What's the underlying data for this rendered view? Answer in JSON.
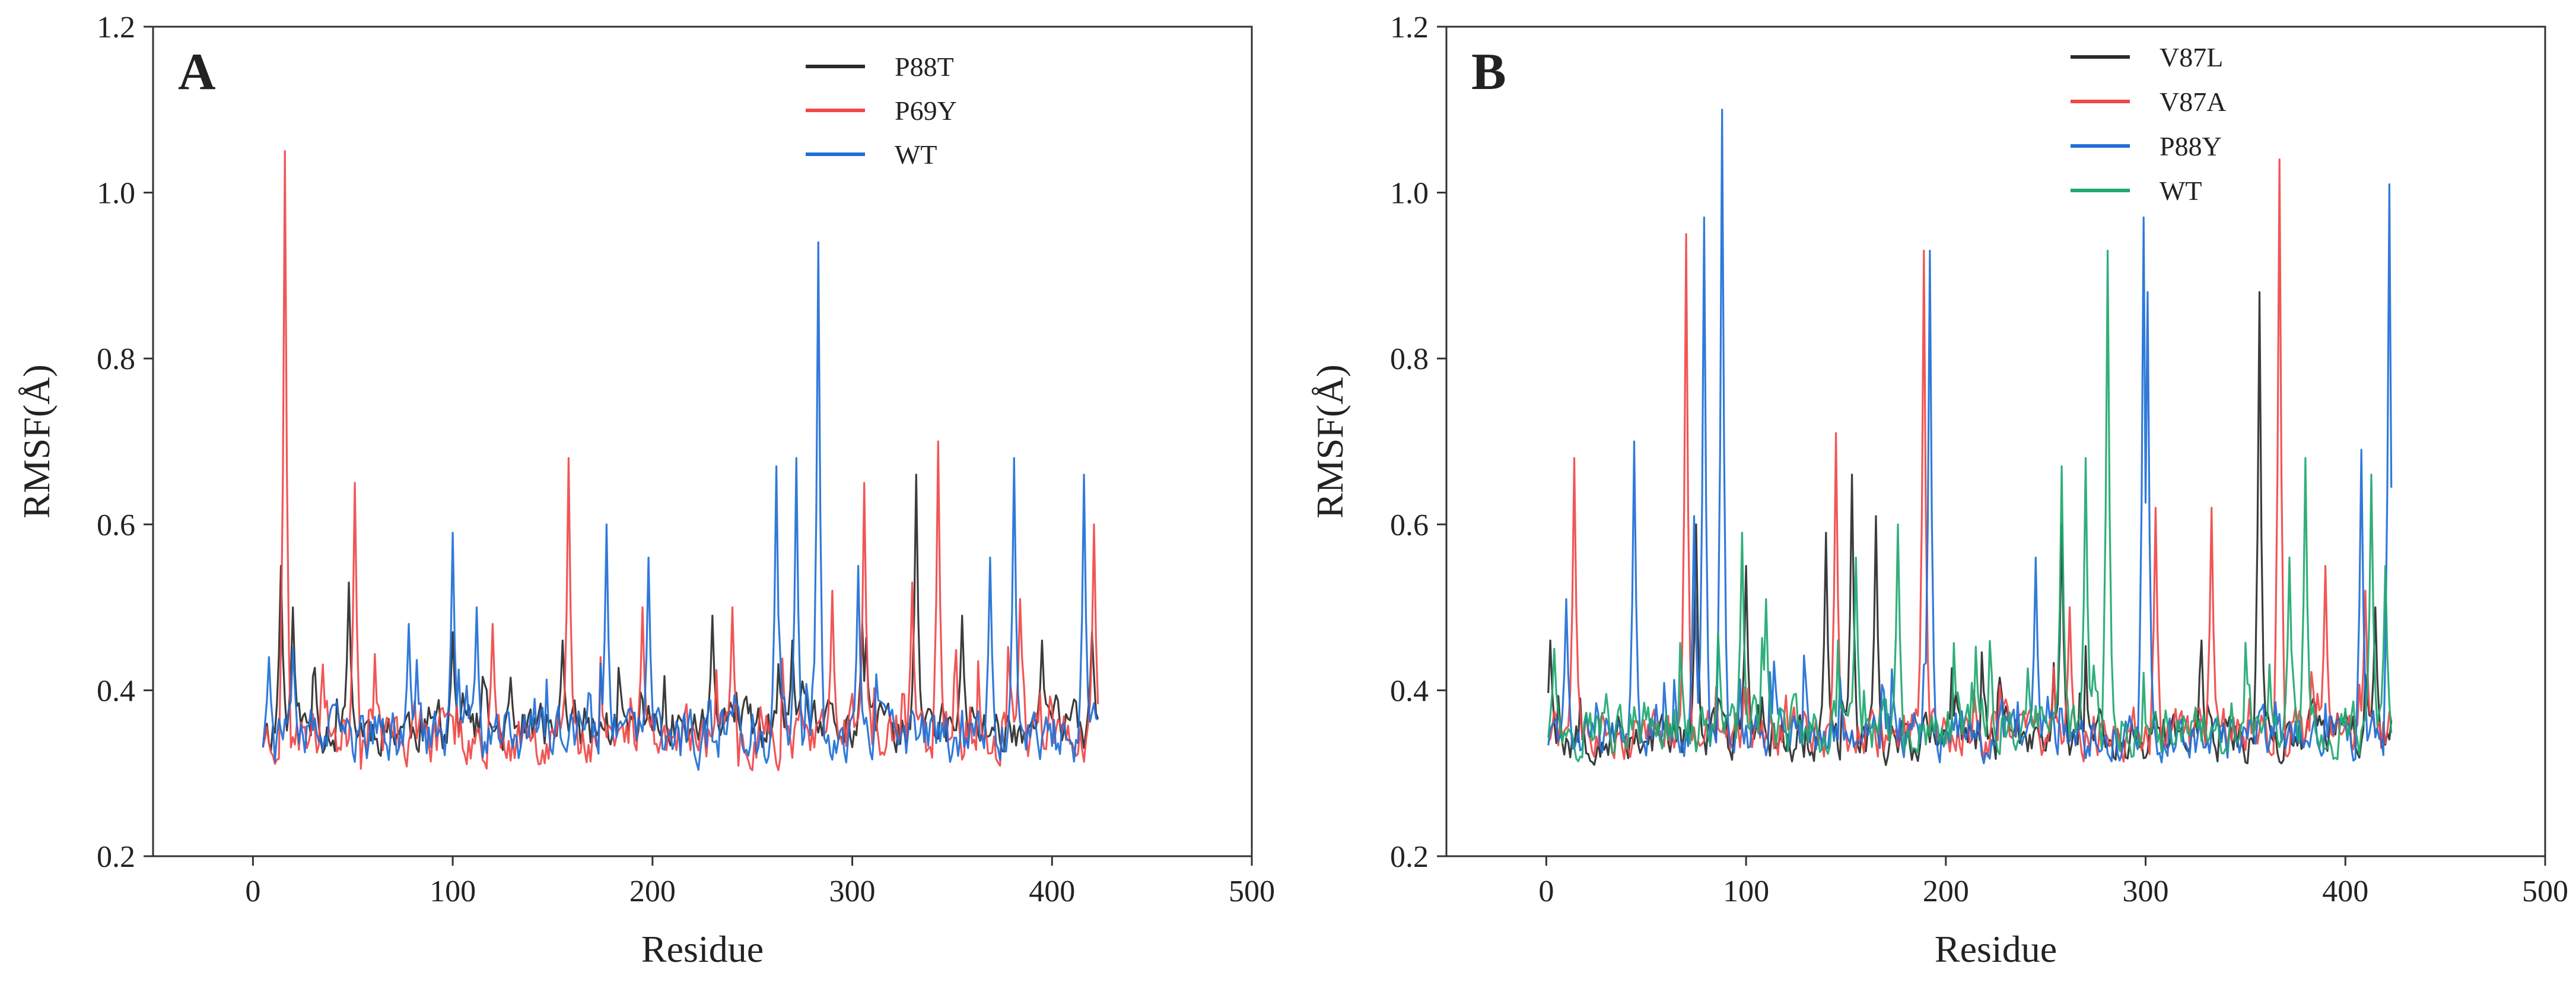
{
  "chart_data": [
    {
      "type": "line",
      "panel_label": "A",
      "xlabel": "Residue",
      "ylabel": "RMSF(Å)",
      "xlim": [
        -50,
        500
      ],
      "ylim": [
        0.2,
        1.2
      ],
      "xticks": [
        "0",
        "100",
        "200",
        "300",
        "400",
        "500"
      ],
      "yticks": [
        "0.2",
        "0.4",
        "0.6",
        "0.8",
        "1.0",
        "1.2"
      ],
      "grid": false,
      "legend_position": "top-center",
      "residue_range": [
        5,
        423
      ],
      "series": [
        {
          "name": "P88T",
          "color": "#2b2b2b",
          "baseline": 0.355,
          "noise": 0.045,
          "seed": 11,
          "peaks": [
            [
              14,
              0.55
            ],
            [
              20,
              0.5
            ],
            [
              48,
              0.53
            ],
            [
              100,
              0.47
            ],
            [
              155,
              0.46
            ],
            [
              230,
              0.49
            ],
            [
              270,
              0.46
            ],
            [
              305,
              0.48
            ],
            [
              332,
              0.66
            ],
            [
              355,
              0.49
            ],
            [
              395,
              0.46
            ],
            [
              420,
              0.47
            ]
          ]
        },
        {
          "name": "P69Y",
          "color": "#f04848",
          "baseline": 0.345,
          "noise": 0.05,
          "seed": 23,
          "peaks": [
            [
              16,
              1.05
            ],
            [
              51,
              0.65
            ],
            [
              120,
              0.48
            ],
            [
              158,
              0.68
            ],
            [
              195,
              0.5
            ],
            [
              240,
              0.5
            ],
            [
              290,
              0.52
            ],
            [
              306,
              0.65
            ],
            [
              330,
              0.53
            ],
            [
              343,
              0.7
            ],
            [
              384,
              0.51
            ],
            [
              421,
              0.6
            ]
          ]
        },
        {
          "name": "WT",
          "color": "#1f6fd6",
          "baseline": 0.345,
          "noise": 0.05,
          "seed": 37,
          "peaks": [
            [
              8,
              0.44
            ],
            [
              78,
              0.48
            ],
            [
              100,
              0.59
            ],
            [
              112,
              0.5
            ],
            [
              177,
              0.6
            ],
            [
              198,
              0.56
            ],
            [
              262,
              0.67
            ],
            [
              272,
              0.68
            ],
            [
              283,
              0.94
            ],
            [
              303,
              0.55
            ],
            [
              369,
              0.56
            ],
            [
              381,
              0.68
            ],
            [
              416,
              0.66
            ]
          ]
        }
      ]
    },
    {
      "type": "line",
      "panel_label": "B",
      "xlabel": "Residue",
      "ylabel": "RMSF(Å)",
      "xlim": [
        -50,
        500
      ],
      "ylim": [
        0.2,
        1.2
      ],
      "xticks": [
        "0",
        "100",
        "200",
        "300",
        "400",
        "500"
      ],
      "yticks": [
        "0.2",
        "0.4",
        "0.6",
        "0.8",
        "1.0",
        "1.2"
      ],
      "grid": false,
      "legend_position": "top-center",
      "residue_range": [
        1,
        423
      ],
      "series": [
        {
          "name": "V87L",
          "color": "#2b2b2b",
          "baseline": 0.345,
          "noise": 0.045,
          "seed": 53,
          "peaks": [
            [
              2,
              0.46
            ],
            [
              75,
              0.6
            ],
            [
              100,
              0.55
            ],
            [
              140,
              0.59
            ],
            [
              153,
              0.66
            ],
            [
              165,
              0.61
            ],
            [
              258,
              0.6
            ],
            [
              357,
              0.88
            ],
            [
              415,
              0.5
            ]
          ]
        },
        {
          "name": "V87A",
          "color": "#f04848",
          "baseline": 0.35,
          "noise": 0.045,
          "seed": 71,
          "peaks": [
            [
              14,
              0.68
            ],
            [
              70,
              0.95
            ],
            [
              145,
              0.71
            ],
            [
              189,
              0.93
            ],
            [
              262,
              0.5
            ],
            [
              305,
              0.62
            ],
            [
              333,
              0.62
            ],
            [
              367,
              1.04
            ],
            [
              390,
              0.55
            ],
            [
              410,
              0.52
            ]
          ]
        },
        {
          "name": "P88Y",
          "color": "#1f6fd6",
          "baseline": 0.345,
          "noise": 0.045,
          "seed": 89,
          "peaks": [
            [
              10,
              0.51
            ],
            [
              44,
              0.7
            ],
            [
              74,
              0.61
            ],
            [
              79,
              0.97
            ],
            [
              88,
              1.1
            ],
            [
              192,
              0.93
            ],
            [
              245,
              0.56
            ],
            [
              299,
              0.97
            ],
            [
              301,
              0.88
            ],
            [
              408,
              0.69
            ],
            [
              422,
              1.01
            ]
          ]
        },
        {
          "name": "WT",
          "color": "#1fa870",
          "baseline": 0.355,
          "noise": 0.05,
          "seed": 97,
          "peaks": [
            [
              4,
              0.45
            ],
            [
              98,
              0.59
            ],
            [
              110,
              0.51
            ],
            [
              155,
              0.56
            ],
            [
              176,
              0.6
            ],
            [
              258,
              0.67
            ],
            [
              270,
              0.68
            ],
            [
              281,
              0.93
            ],
            [
              372,
              0.56
            ],
            [
              380,
              0.68
            ],
            [
              413,
              0.66
            ],
            [
              420,
              0.55
            ]
          ]
        }
      ]
    }
  ]
}
